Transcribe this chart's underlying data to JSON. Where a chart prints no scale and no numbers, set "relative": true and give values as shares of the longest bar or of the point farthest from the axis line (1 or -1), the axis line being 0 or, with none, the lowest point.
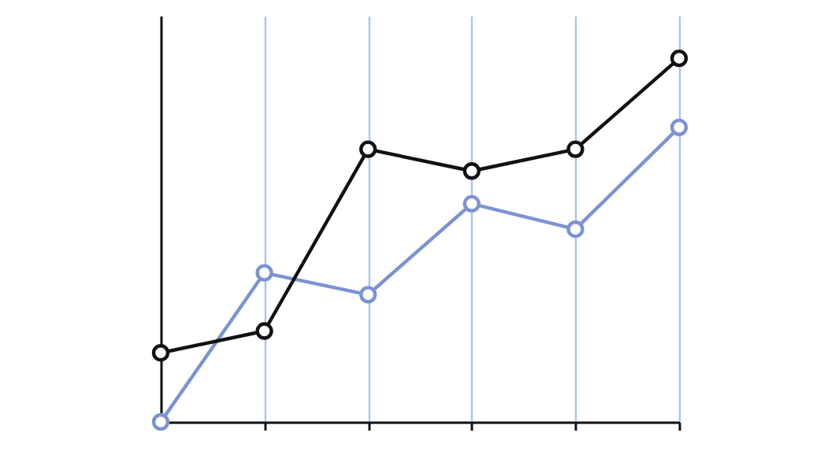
{
  "chart_data": {
    "type": "line",
    "relative": true,
    "categories": [
      null,
      null,
      null,
      null,
      null,
      null
    ],
    "grid": "x",
    "marker": "circle",
    "line_style": "solid",
    "series": [
      {
        "color": "#7b93d3",
        "values": [
          0,
          0.41,
          0.35,
          0.6,
          0.53,
          0.81
        ]
      },
      {
        "color": "#111111",
        "values": [
          0.19,
          0.25,
          0.75,
          0.69,
          0.75,
          1
        ]
      }
    ]
  }
}
